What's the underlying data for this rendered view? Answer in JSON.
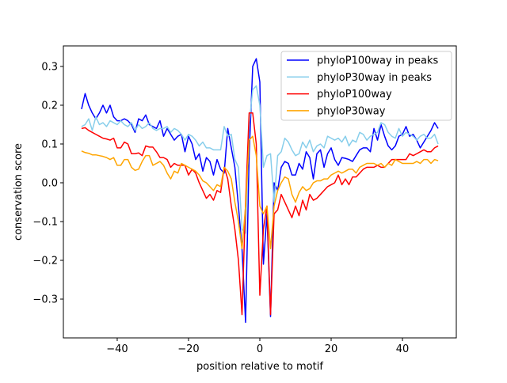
{
  "chart_data": {
    "type": "line",
    "title": "",
    "xlabel": "position relative to motif",
    "ylabel": "conservation score",
    "xlim": [
      -55.1,
      55.1
    ],
    "ylim": [
      -0.4,
      0.353
    ],
    "xticks": [
      -40,
      -20,
      0,
      20,
      40
    ],
    "yticks": [
      -0.3,
      -0.2,
      -0.1,
      0.0,
      0.1,
      0.2,
      0.3
    ],
    "xtick_labels": [
      "−40",
      "−20",
      "0",
      "20",
      "40"
    ],
    "ytick_labels": [
      "−0.3",
      "−0.2",
      "−0.1",
      "0.0",
      "0.1",
      "0.2",
      "0.3"
    ],
    "grid": false,
    "legend_position": "top-right",
    "x_start": -50,
    "x_step": 1,
    "series": [
      {
        "name": "phyloP100way in peaks",
        "color": "#0000ff",
        "values": [
          0.19,
          0.23,
          0.2,
          0.18,
          0.165,
          0.18,
          0.2,
          0.18,
          0.2,
          0.17,
          0.16,
          0.16,
          0.165,
          0.16,
          0.15,
          0.13,
          0.165,
          0.16,
          0.175,
          0.15,
          0.145,
          0.14,
          0.16,
          0.12,
          0.14,
          0.125,
          0.11,
          0.12,
          0.125,
          0.08,
          0.12,
          0.1,
          0.06,
          0.075,
          0.03,
          0.065,
          0.055,
          0.02,
          0.06,
          0.035,
          0.025,
          0.14,
          0.09,
          0.04,
          -0.06,
          -0.17,
          -0.36,
          0.07,
          0.3,
          0.32,
          0.26,
          -0.21,
          -0.08,
          -0.345,
          0.0,
          -0.02,
          0.04,
          0.055,
          0.05,
          0.02,
          0.02,
          0.05,
          0.035,
          0.08,
          0.065,
          0.01,
          0.075,
          0.085,
          0.04,
          0.075,
          0.09,
          0.06,
          0.045,
          0.065,
          0.063,
          0.06,
          0.055,
          0.07,
          0.085,
          0.09,
          0.09,
          0.08,
          0.14,
          0.11,
          0.15,
          0.12,
          0.095,
          0.085,
          0.095,
          0.12,
          0.125,
          0.145,
          0.12,
          0.125,
          0.11,
          0.09,
          0.105,
          0.12,
          0.135,
          0.155,
          0.14
        ]
      },
      {
        "name": "phyloP30way in peaks",
        "color": "#87ceeb",
        "values": [
          0.145,
          0.15,
          0.165,
          0.135,
          0.17,
          0.15,
          0.155,
          0.145,
          0.16,
          0.155,
          0.15,
          0.16,
          0.15,
          0.145,
          0.155,
          0.135,
          0.15,
          0.14,
          0.145,
          0.155,
          0.14,
          0.135,
          0.14,
          0.14,
          0.145,
          0.13,
          0.14,
          0.135,
          0.125,
          0.11,
          0.125,
          0.12,
          0.11,
          0.095,
          0.105,
          0.09,
          0.09,
          0.085,
          0.085,
          0.085,
          0.145,
          0.12,
          0.125,
          0.06,
          0.04,
          -0.12,
          -0.13,
          0.15,
          0.24,
          0.25,
          0.2,
          0.04,
          0.07,
          0.075,
          -0.05,
          0.07,
          0.08,
          0.115,
          0.105,
          0.085,
          0.07,
          0.075,
          0.105,
          0.09,
          0.11,
          0.08,
          0.095,
          0.1,
          0.09,
          0.12,
          0.115,
          0.11,
          0.115,
          0.105,
          0.12,
          0.095,
          0.11,
          0.105,
          0.13,
          0.125,
          0.11,
          0.12,
          0.125,
          0.13,
          0.155,
          0.15,
          0.13,
          0.12,
          0.115,
          0.14,
          0.12,
          0.13,
          0.125,
          0.12,
          0.11,
          0.12,
          0.125,
          0.115,
          0.115,
          0.125,
          0.1
        ]
      },
      {
        "name": "phyloP100way",
        "color": "#ff0000",
        "values": [
          0.14,
          0.142,
          0.135,
          0.13,
          0.125,
          0.12,
          0.115,
          0.113,
          0.11,
          0.115,
          0.09,
          0.09,
          0.105,
          0.1,
          0.075,
          0.075,
          0.077,
          0.07,
          0.095,
          0.092,
          0.092,
          0.08,
          0.065,
          0.065,
          0.06,
          0.04,
          0.05,
          0.045,
          0.045,
          0.045,
          0.02,
          0.035,
          0.025,
          0.0,
          -0.02,
          -0.04,
          -0.03,
          -0.045,
          -0.02,
          -0.025,
          0.04,
          0.01,
          -0.06,
          -0.12,
          -0.2,
          -0.34,
          -0.05,
          0.18,
          0.18,
          0.1,
          -0.29,
          -0.12,
          -0.06,
          -0.34,
          -0.08,
          -0.07,
          -0.03,
          -0.05,
          -0.07,
          -0.09,
          -0.06,
          -0.085,
          -0.045,
          -0.07,
          -0.03,
          -0.045,
          -0.04,
          -0.03,
          -0.02,
          -0.01,
          -0.005,
          0.0,
          0.02,
          -0.005,
          0.01,
          -0.005,
          0.015,
          0.015,
          0.025,
          0.035,
          0.04,
          0.04,
          0.04,
          0.045,
          0.04,
          0.04,
          0.05,
          0.06,
          0.06,
          0.06,
          0.06,
          0.06,
          0.075,
          0.07,
          0.075,
          0.08,
          0.085,
          0.08,
          0.08,
          0.09,
          0.095
        ]
      },
      {
        "name": "phyloP30way",
        "color": "#ffa500",
        "values": [
          0.082,
          0.078,
          0.076,
          0.072,
          0.072,
          0.07,
          0.068,
          0.065,
          0.06,
          0.065,
          0.045,
          0.045,
          0.06,
          0.06,
          0.04,
          0.032,
          0.035,
          0.055,
          0.07,
          0.07,
          0.045,
          0.05,
          0.055,
          0.045,
          0.025,
          0.01,
          0.03,
          0.025,
          0.05,
          0.045,
          0.04,
          0.035,
          0.03,
          0.02,
          0.005,
          0.0,
          -0.01,
          -0.02,
          -0.005,
          -0.01,
          0.04,
          0.03,
          0.01,
          -0.05,
          -0.1,
          -0.17,
          -0.06,
          0.11,
          0.12,
          0.07,
          -0.06,
          -0.08,
          -0.06,
          -0.17,
          -0.06,
          -0.02,
          0.0,
          0.015,
          0.01,
          -0.03,
          -0.05,
          -0.025,
          -0.01,
          -0.02,
          -0.015,
          0.0,
          0.005,
          0.005,
          0.01,
          0.01,
          0.02,
          0.025,
          0.03,
          0.025,
          0.03,
          0.035,
          0.035,
          0.025,
          0.04,
          0.045,
          0.05,
          0.05,
          0.05,
          0.045,
          0.05,
          0.04,
          0.05,
          0.045,
          0.06,
          0.055,
          0.05,
          0.05,
          0.05,
          0.05,
          0.055,
          0.05,
          0.06,
          0.06,
          0.05,
          0.06,
          0.057
        ]
      }
    ]
  }
}
